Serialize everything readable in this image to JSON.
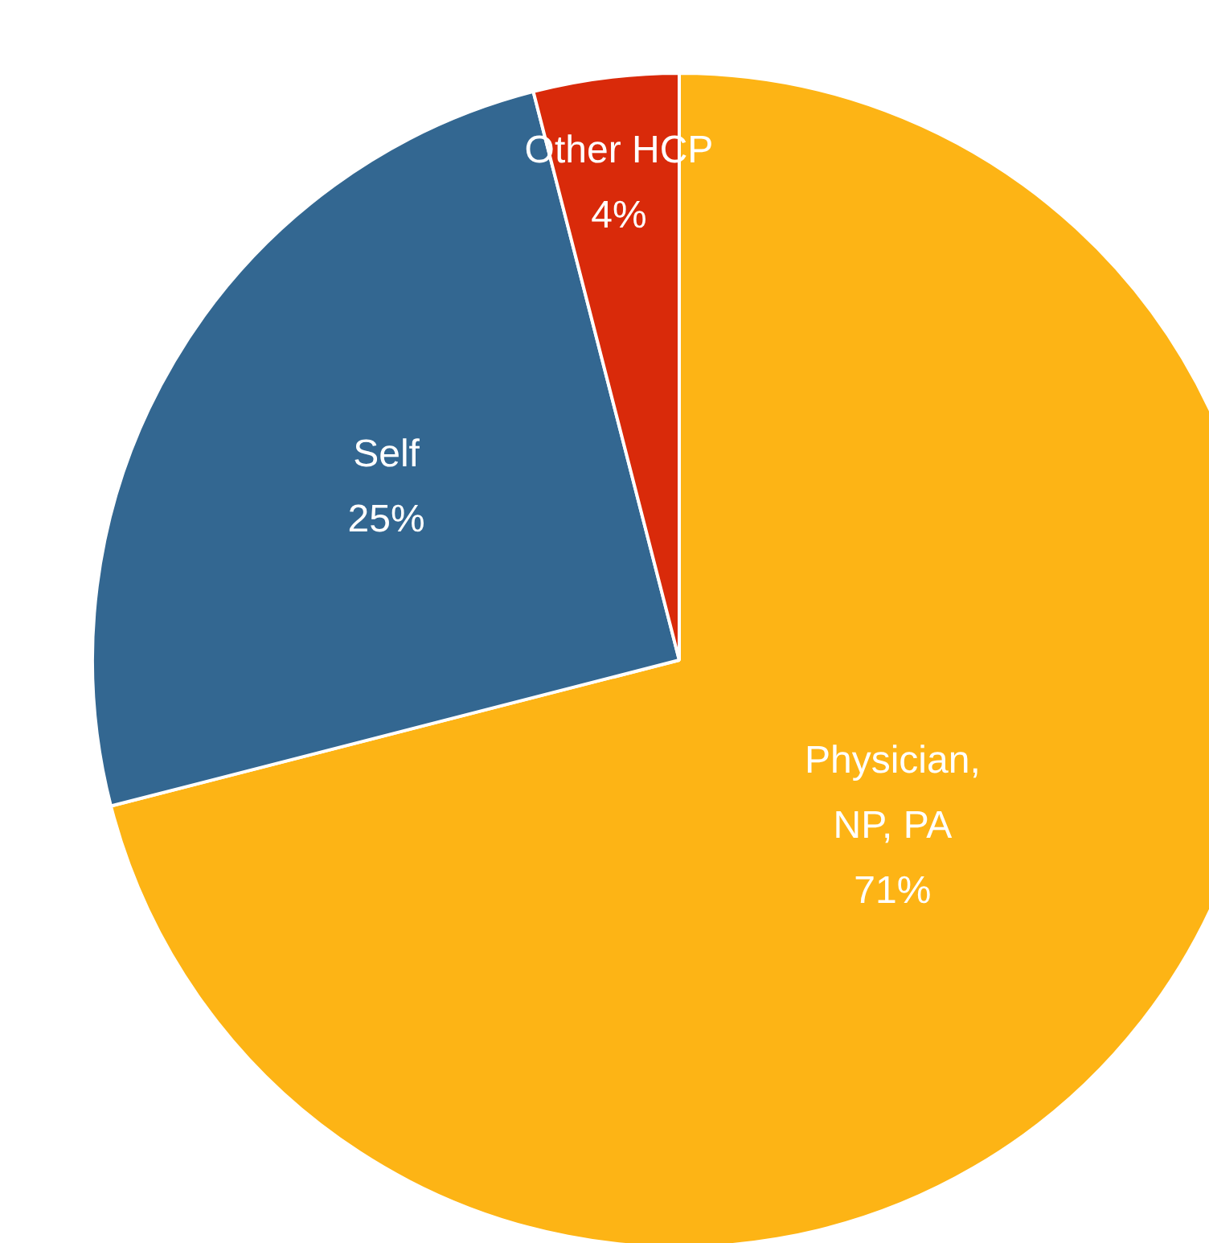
{
  "chart_data": {
    "type": "pie",
    "categories": [
      "Physician, NP, PA",
      "Self",
      "Other HCP"
    ],
    "values": [
      71,
      25,
      4
    ],
    "colors": [
      "#fdb415",
      "#336791",
      "#d92a0a"
    ],
    "value_labels": [
      "71%",
      "25%",
      "4%"
    ]
  }
}
